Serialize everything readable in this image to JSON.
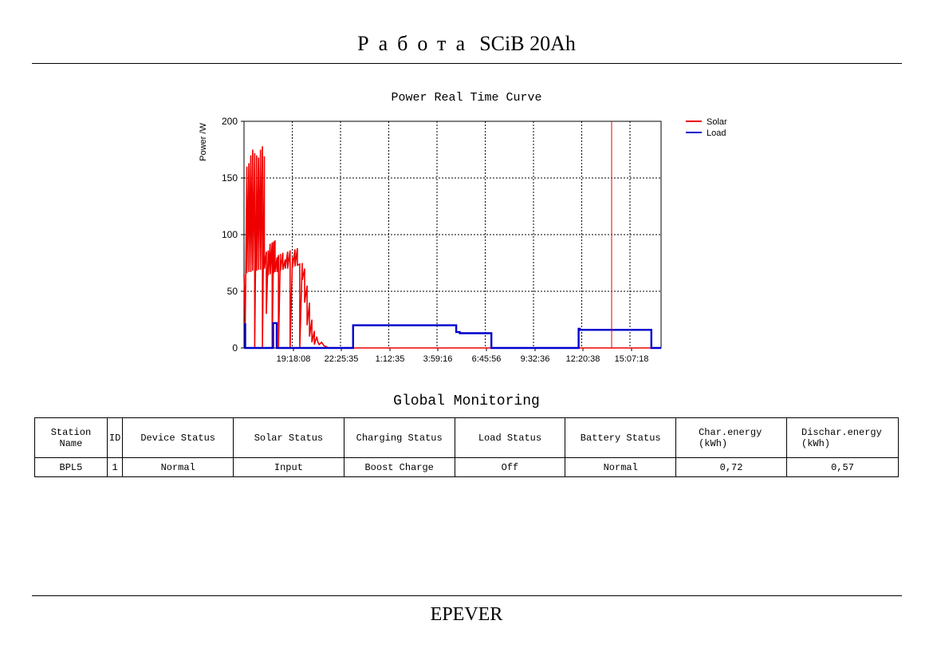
{
  "header": {
    "title_spaced": "Работа",
    "title_rest": "SCiB 20Ah"
  },
  "footer": {
    "brand": "EPEVER"
  },
  "chart_data": {
    "type": "line",
    "title": "Power Real Time Curve",
    "ylabel": "Power /W",
    "xlabel": "",
    "ylim": [
      0,
      200
    ],
    "yticks": [
      0,
      50,
      100,
      150,
      200
    ],
    "xticks": [
      "19:18:08",
      "22:25:35",
      "1:12:35",
      "3:59:16",
      "6:45:56",
      "9:32:36",
      "12:20:38",
      "15:07:18"
    ],
    "xlim": [
      0,
      17.2
    ],
    "x_unit": "hours from start of record",
    "grid": true,
    "legend_position": "top-right",
    "series": [
      {
        "name": "Solar",
        "color": "#ee0000",
        "x": [
          0,
          0.05,
          0.12,
          0.12,
          0.2,
          0.2,
          0.28,
          0.28,
          0.36,
          0.36,
          0.44,
          0.44,
          0.52,
          0.52,
          0.6,
          0.6,
          0.68,
          0.68,
          0.76,
          0.76,
          0.84,
          0.84,
          0.92,
          0.92,
          1.0,
          1.0,
          1.08,
          1.08,
          1.16,
          1.16,
          1.22,
          1.22,
          1.28,
          1.28,
          1.36,
          1.36,
          1.42,
          1.42,
          1.5,
          1.5,
          1.6,
          1.6,
          1.7,
          1.7,
          1.8,
          1.8,
          1.9,
          1.9,
          2.0,
          2.0,
          2.1,
          2.1,
          2.2,
          2.2,
          2.3,
          2.3,
          2.4,
          2.4,
          2.5,
          2.5,
          2.6,
          2.6,
          2.7,
          2.7,
          2.8,
          2.8,
          2.9,
          2.9,
          3.0,
          3.05,
          3.1,
          3.2,
          3.3,
          3.4,
          3.5,
          3.6,
          4.0,
          4.5,
          15.4,
          15.5,
          15.5,
          15.55,
          15.55,
          15.6,
          15.6,
          15.65,
          15.65,
          15.7,
          15.7,
          15.75,
          15.75,
          15.8,
          15.8,
          15.85,
          15.85,
          15.9,
          15.9,
          15.95,
          15.95,
          16.0,
          16.0,
          16.05,
          16.05,
          16.1,
          16.1,
          16.15,
          16.15,
          16.2,
          16.2,
          16.25,
          16.25,
          16.3,
          16.3,
          16.35,
          16.35,
          16.4,
          16.4,
          16.45,
          16.45,
          16.5,
          16.5,
          16.55,
          16.55,
          16.6,
          16.6,
          16.65,
          16.65,
          16.7,
          16.7,
          16.75,
          16.75,
          16.8,
          16.8,
          16.85,
          16.85,
          16.9,
          16.9,
          16.95,
          16.95,
          17.0,
          17.0,
          17.05,
          17.05,
          17.1,
          17.1,
          17.15,
          17.15,
          17.2
        ],
        "y": [
          65,
          20,
          160,
          66,
          163,
          67,
          170,
          67,
          175,
          68,
          172,
          0,
          170,
          68,
          168,
          69,
          175,
          69,
          178,
          0,
          169,
          70,
          85,
          30,
          86,
          64,
          92,
          65,
          93,
          0,
          94,
          66,
          95,
          67,
          80,
          67,
          82,
          0,
          83,
          68,
          84,
          69,
          78,
          70,
          85,
          70,
          86,
          0,
          80,
          71,
          87,
          72,
          88,
          73,
          74,
          0,
          75,
          60,
          70,
          40,
          55,
          20,
          40,
          10,
          25,
          5,
          15,
          3,
          10,
          5,
          3,
          5,
          2,
          1,
          0,
          0,
          0,
          0,
          0,
          0,
          0,
          0,
          0,
          0,
          0,
          0,
          0,
          0,
          0,
          0,
          0,
          0,
          0,
          0,
          0,
          0,
          0,
          0,
          0,
          0,
          0,
          0,
          0,
          0,
          0,
          0,
          0,
          0,
          0,
          0,
          0,
          0,
          0,
          0,
          0,
          0,
          0,
          0,
          0,
          0,
          0,
          0,
          0,
          0,
          0,
          0,
          0,
          0,
          0,
          0,
          0,
          0,
          0,
          0,
          0,
          0,
          0,
          0,
          0,
          0,
          0,
          0,
          0,
          0,
          0,
          0,
          0,
          0
        ]
      },
      {
        "name": "Load",
        "color": "#0000cc",
        "x": [
          0,
          0.05,
          0.05,
          1.2,
          1.2,
          1.35,
          1.35,
          1.4,
          1.4,
          4.5,
          4.5,
          8.75,
          8.75,
          8.9,
          8.9,
          10.2,
          10.2,
          13.8,
          13.8,
          13.85,
          13.85,
          16.8,
          16.8,
          17.2
        ],
        "y": [
          21,
          21,
          0,
          0,
          22,
          22,
          0,
          0,
          0,
          0,
          20,
          20,
          14,
          14,
          13,
          13,
          0,
          0,
          17,
          17,
          16,
          16,
          0,
          0
        ]
      }
    ]
  },
  "monitoring": {
    "title": "Global Monitoring",
    "columns": [
      "Station Name",
      "ID",
      "Device Status",
      "Solar Status",
      "Charging Status",
      "Load Status",
      "Battery Status",
      "Char.energy (kWh)",
      "Dischar.energy (kWh)"
    ],
    "rows": [
      [
        "BPL5",
        "1",
        "Normal",
        "Input",
        "Boost Charge",
        "Off",
        "Normal",
        "0,72",
        "0,57"
      ]
    ]
  }
}
